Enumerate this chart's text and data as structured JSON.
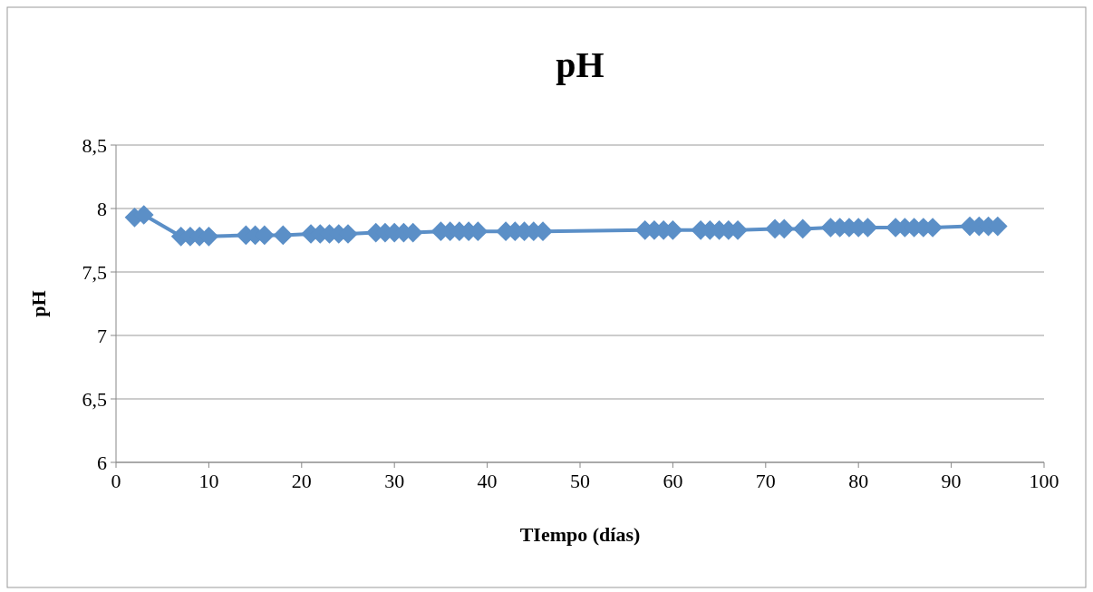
{
  "chart_data": {
    "type": "line",
    "title": "pH",
    "xlabel": "TIempo (días)",
    "ylabel": "pH",
    "x": [
      2,
      3,
      7,
      8,
      9,
      10,
      14,
      15,
      16,
      18,
      21,
      22,
      23,
      24,
      25,
      28,
      29,
      30,
      31,
      32,
      35,
      36,
      37,
      38,
      39,
      42,
      43,
      44,
      45,
      46,
      57,
      58,
      59,
      60,
      63,
      64,
      65,
      66,
      67,
      71,
      72,
      74,
      77,
      78,
      79,
      80,
      81,
      84,
      85,
      86,
      87,
      88,
      92,
      93,
      94,
      95
    ],
    "series": [
      {
        "color": "#5b8fc7",
        "values": [
          7.93,
          7.95,
          7.78,
          7.78,
          7.78,
          7.78,
          7.79,
          7.79,
          7.79,
          7.79,
          7.8,
          7.8,
          7.8,
          7.8,
          7.8,
          7.81,
          7.81,
          7.81,
          7.81,
          7.81,
          7.82,
          7.82,
          7.82,
          7.82,
          7.82,
          7.82,
          7.82,
          7.82,
          7.82,
          7.82,
          7.83,
          7.83,
          7.83,
          7.83,
          7.83,
          7.83,
          7.83,
          7.83,
          7.83,
          7.84,
          7.84,
          7.84,
          7.85,
          7.85,
          7.85,
          7.85,
          7.85,
          7.85,
          7.85,
          7.85,
          7.85,
          7.85,
          7.86,
          7.86,
          7.86,
          7.86
        ]
      }
    ],
    "xlim": [
      0,
      100
    ],
    "xticks": [
      0,
      10,
      20,
      30,
      40,
      50,
      60,
      70,
      80,
      90,
      100
    ],
    "ylim": [
      6,
      8.5
    ],
    "yticks": [
      {
        "value": 6,
        "label": "6"
      },
      {
        "value": 6.5,
        "label": "6,5"
      },
      {
        "value": 7,
        "label": "7"
      },
      {
        "value": 7.5,
        "label": "7,5"
      },
      {
        "value": 8,
        "label": "8"
      },
      {
        "value": 8.5,
        "label": "8,5"
      }
    ],
    "grid": "y",
    "marker": "diamond"
  }
}
